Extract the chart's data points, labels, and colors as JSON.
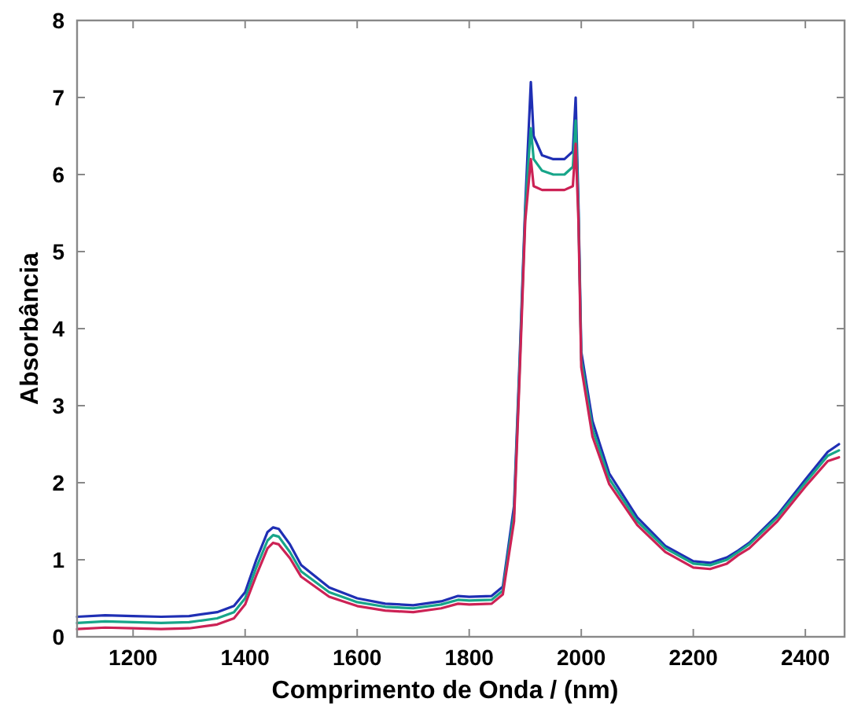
{
  "chart_data": {
    "type": "line",
    "xlabel": "Comprimento de Onda / (nm)",
    "ylabel": "Absorbância",
    "x": [
      1100,
      1150,
      1200,
      1250,
      1300,
      1350,
      1380,
      1400,
      1420,
      1440,
      1450,
      1460,
      1480,
      1500,
      1550,
      1600,
      1650,
      1700,
      1750,
      1780,
      1800,
      1840,
      1860,
      1880,
      1890,
      1900,
      1905,
      1910,
      1915,
      1930,
      1950,
      1970,
      1985,
      1990,
      1995,
      2000,
      2020,
      2050,
      2100,
      2150,
      2200,
      2230,
      2260,
      2280,
      2300,
      2350,
      2400,
      2440,
      2460
    ],
    "series": [
      {
        "color": "#1f2fb4",
        "values": [
          0.26,
          0.28,
          0.27,
          0.26,
          0.27,
          0.32,
          0.4,
          0.58,
          1.0,
          1.36,
          1.42,
          1.4,
          1.2,
          0.93,
          0.64,
          0.5,
          0.43,
          0.41,
          0.46,
          0.53,
          0.52,
          0.53,
          0.65,
          1.7,
          3.6,
          5.6,
          6.4,
          7.2,
          6.5,
          6.25,
          6.2,
          6.2,
          6.3,
          7.0,
          5.6,
          3.7,
          2.8,
          2.12,
          1.55,
          1.18,
          0.98,
          0.96,
          1.03,
          1.12,
          1.22,
          1.58,
          2.04,
          2.4,
          2.5
        ]
      },
      {
        "color": "#17a589",
        "values": [
          0.18,
          0.2,
          0.19,
          0.18,
          0.19,
          0.24,
          0.32,
          0.5,
          0.9,
          1.25,
          1.32,
          1.3,
          1.1,
          0.85,
          0.58,
          0.45,
          0.39,
          0.37,
          0.42,
          0.48,
          0.47,
          0.48,
          0.6,
          1.6,
          3.5,
          5.5,
          6.1,
          6.6,
          6.2,
          6.05,
          6.0,
          6.0,
          6.1,
          6.7,
          5.5,
          3.6,
          2.7,
          2.05,
          1.5,
          1.15,
          0.95,
          0.93,
          1.0,
          1.1,
          1.2,
          1.55,
          2.0,
          2.35,
          2.42
        ]
      },
      {
        "color": "#cc2255",
        "values": [
          0.1,
          0.12,
          0.11,
          0.1,
          0.11,
          0.16,
          0.24,
          0.42,
          0.8,
          1.15,
          1.22,
          1.2,
          1.02,
          0.78,
          0.52,
          0.4,
          0.34,
          0.32,
          0.37,
          0.43,
          0.42,
          0.43,
          0.55,
          1.5,
          3.4,
          5.4,
          5.8,
          6.2,
          5.85,
          5.8,
          5.8,
          5.8,
          5.85,
          6.4,
          5.4,
          3.5,
          2.6,
          1.98,
          1.45,
          1.1,
          0.9,
          0.88,
          0.95,
          1.06,
          1.15,
          1.5,
          1.95,
          2.28,
          2.33
        ]
      }
    ],
    "xlim": [
      1100,
      2470
    ],
    "xticks": [
      1200,
      1400,
      1600,
      1800,
      2000,
      2200,
      2400
    ],
    "ylim": [
      0,
      8
    ],
    "yticks": [
      0,
      1,
      2,
      3,
      4,
      5,
      6,
      7,
      8
    ]
  }
}
